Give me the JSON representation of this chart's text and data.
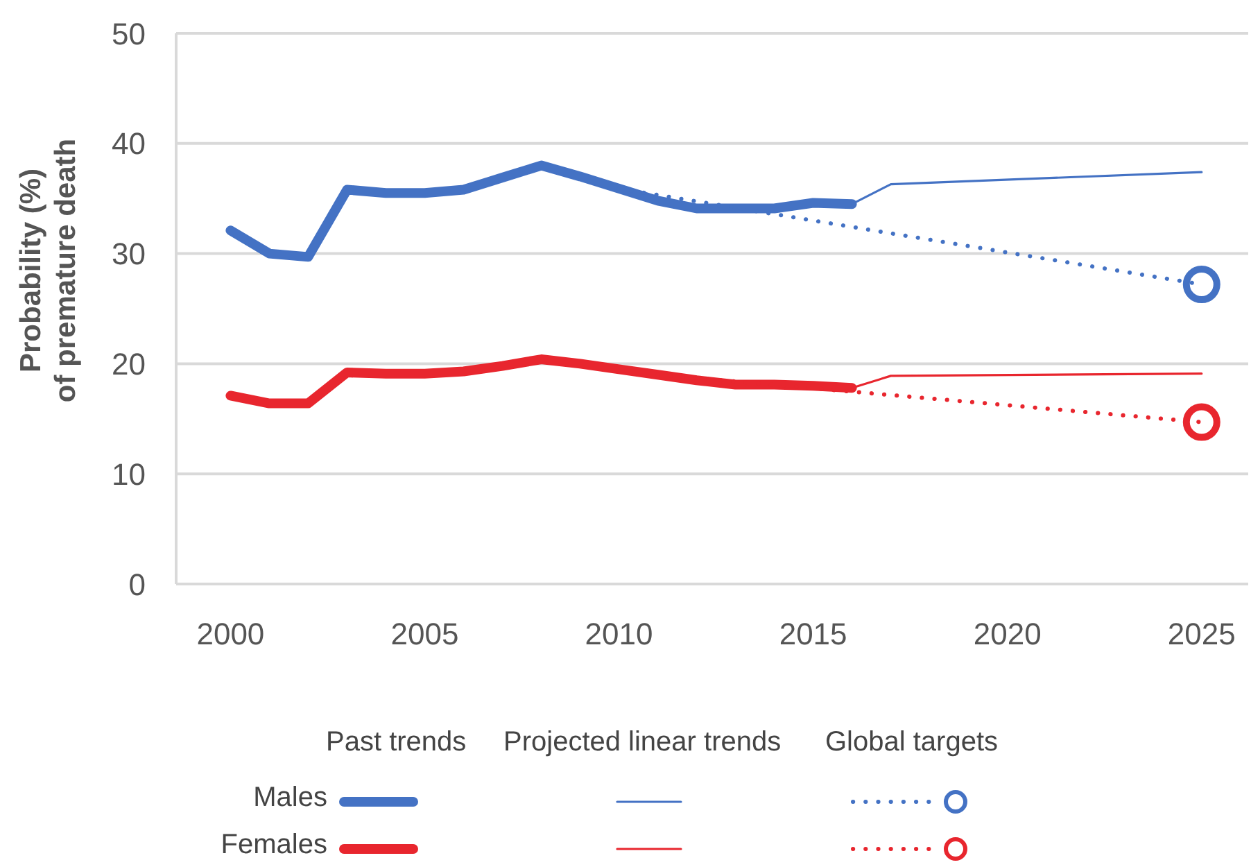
{
  "chart_data": {
    "type": "line",
    "ylabel": "Probability (%) of premature death",
    "xlim": [
      1998.6,
      2026.2
    ],
    "xticks": [
      2000,
      2005,
      2010,
      2015,
      2020,
      2025
    ],
    "ylim": [
      0,
      50
    ],
    "yticks": [
      0,
      10,
      20,
      30,
      40,
      50
    ],
    "grid": "y",
    "legend": "bottom",
    "annotations": [
      "Past trends",
      "Projected linear trends",
      "Global targets"
    ],
    "series": [
      {
        "name": "Males",
        "color": "#4472c4",
        "line_style": "solid",
        "marker": "none",
        "x": [
          2000,
          2001,
          2002,
          2003,
          2004,
          2005,
          2006,
          2007,
          2008,
          2009,
          2010,
          2011,
          2012,
          2013,
          2014,
          2015,
          2016
        ],
        "values": [
          32.1,
          30.0,
          29.7,
          35.8,
          35.5,
          35.5,
          35.8,
          36.9,
          38.0,
          37.0,
          35.9,
          34.8,
          34.1,
          34.1,
          34.1,
          34.6,
          34.5
        ]
      },
      {
        "color": "#4472c4",
        "line_style": "solid",
        "marker": "none",
        "x": [
          2016,
          2017,
          2025
        ],
        "values": [
          34.5,
          36.3,
          37.4
        ]
      },
      {
        "color": "#4472c4",
        "line_style": "dotted",
        "marker": "none",
        "x": [
          2010,
          2025
        ],
        "values": [
          35.9,
          27.2
        ]
      },
      {
        "type": "scatter",
        "color": "#4472c4",
        "marker": "circle",
        "x": [
          2025
        ],
        "values": [
          27.2
        ]
      },
      {
        "name": "Females",
        "color": "#e8262e",
        "line_style": "solid",
        "marker": "none",
        "x": [
          2000,
          2001,
          2002,
          2003,
          2004,
          2005,
          2006,
          2007,
          2008,
          2009,
          2010,
          2011,
          2012,
          2013,
          2014,
          2015,
          2016
        ],
        "values": [
          17.1,
          16.4,
          16.4,
          19.2,
          19.1,
          19.1,
          19.3,
          19.8,
          20.4,
          20.0,
          19.5,
          19.0,
          18.5,
          18.1,
          18.1,
          18.0,
          17.8
        ]
      },
      {
        "color": "#e8262e",
        "line_style": "solid",
        "marker": "none",
        "x": [
          2016,
          2017,
          2025
        ],
        "values": [
          17.8,
          18.9,
          19.1
        ]
      },
      {
        "color": "#e8262e",
        "line_style": "dotted",
        "marker": "none",
        "x": [
          2011,
          2025
        ],
        "values": [
          19.0,
          14.7
        ]
      },
      {
        "type": "scatter",
        "color": "#e8262e",
        "marker": "circle",
        "x": [
          2025
        ],
        "values": [
          14.7
        ]
      }
    ]
  }
}
